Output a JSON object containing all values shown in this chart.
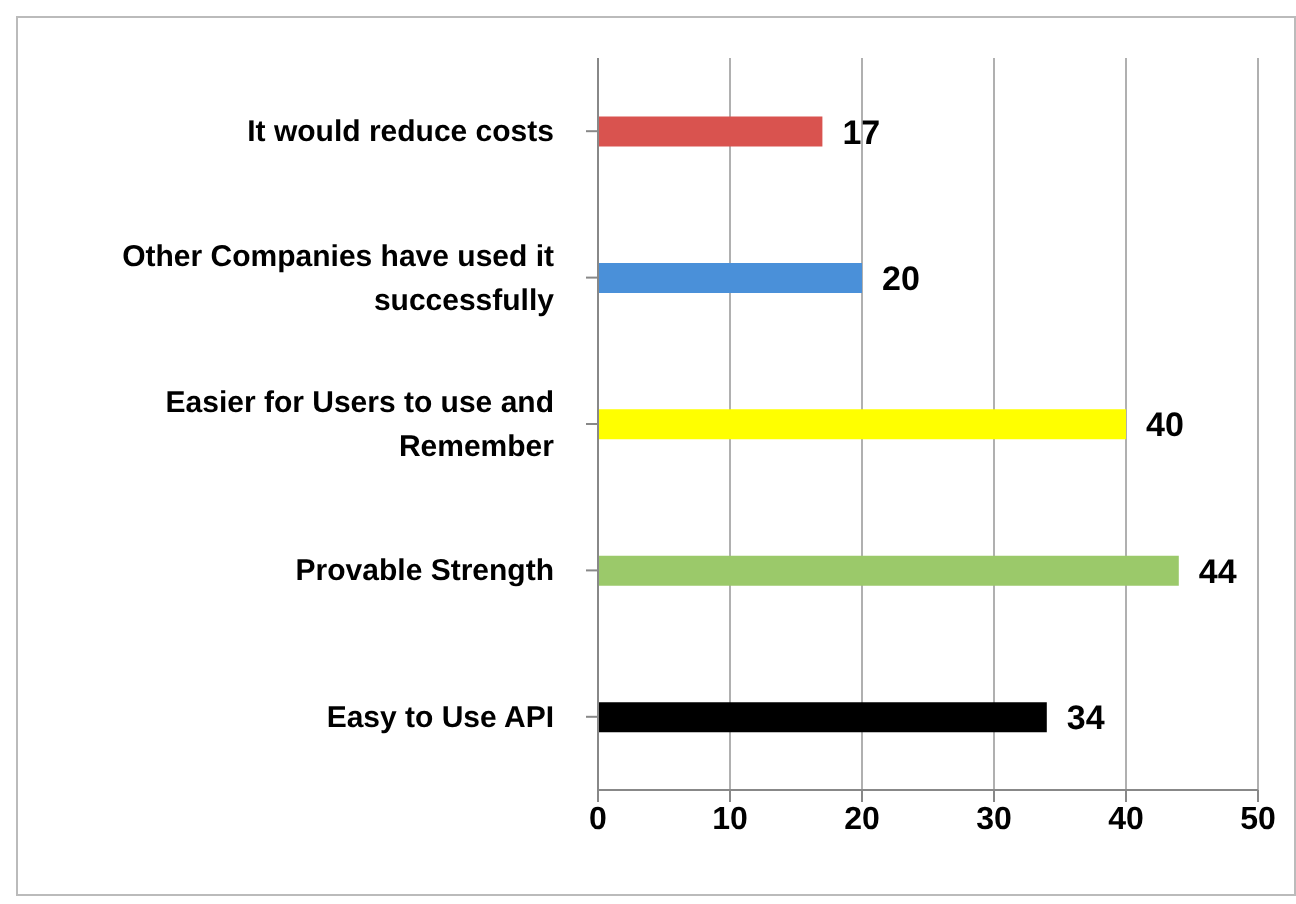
{
  "chart_data": {
    "type": "bar",
    "orientation": "horizontal",
    "categories": [
      "It would reduce costs",
      "Other Companies have used it successfully",
      "Easier for Users to use and Remember",
      "Provable Strength",
      "Easy to Use API"
    ],
    "values": [
      17,
      20,
      40,
      44,
      34
    ],
    "colors": [
      "#d9534f",
      "#4a90d9",
      "#ffff00",
      "#9bc96a",
      "#000000"
    ],
    "xlim": [
      0,
      50
    ],
    "xticks": [
      0,
      10,
      20,
      30,
      40,
      50
    ],
    "grid": "x",
    "data_labels": true
  }
}
